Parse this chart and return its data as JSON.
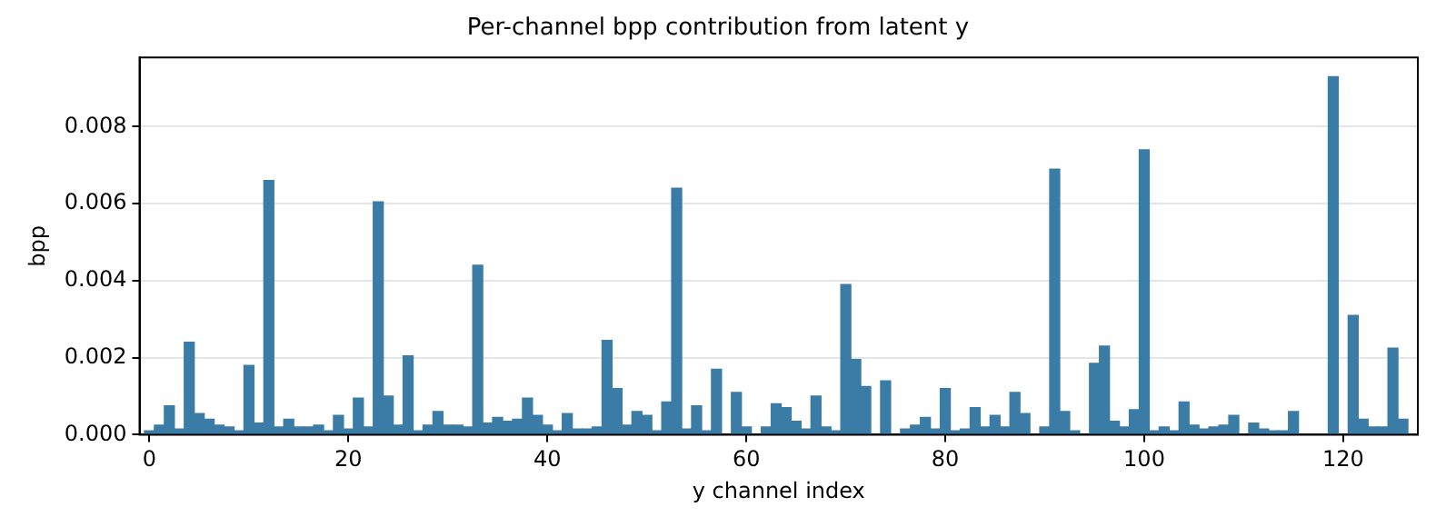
{
  "chart_data": {
    "type": "bar",
    "title": "Per-channel bpp contribution from latent y",
    "xlabel": "y channel index",
    "ylabel": "bpp",
    "x": [
      0,
      1,
      2,
      3,
      4,
      5,
      6,
      7,
      8,
      9,
      10,
      11,
      12,
      13,
      14,
      15,
      16,
      17,
      18,
      19,
      20,
      21,
      22,
      23,
      24,
      25,
      26,
      27,
      28,
      29,
      30,
      31,
      32,
      33,
      34,
      35,
      36,
      37,
      38,
      39,
      40,
      41,
      42,
      43,
      44,
      45,
      46,
      47,
      48,
      49,
      50,
      51,
      52,
      53,
      54,
      55,
      56,
      57,
      58,
      59,
      60,
      61,
      62,
      63,
      64,
      65,
      66,
      67,
      68,
      69,
      70,
      71,
      72,
      73,
      74,
      75,
      76,
      77,
      78,
      79,
      80,
      81,
      82,
      83,
      84,
      85,
      86,
      87,
      88,
      89,
      90,
      91,
      92,
      93,
      94,
      95,
      96,
      97,
      98,
      99,
      100,
      101,
      102,
      103,
      104,
      105,
      106,
      107,
      108,
      109,
      110,
      111,
      112,
      113,
      114,
      115,
      116,
      117,
      118,
      119,
      120,
      121,
      122,
      123,
      124,
      125,
      126,
      127
    ],
    "values": [
      0.0001,
      0.00025,
      0.00075,
      0.00015,
      0.0024,
      0.00055,
      0.0004,
      0.00025,
      0.0002,
      0.0001,
      0.0018,
      0.0003,
      0.0066,
      0.0002,
      0.0004,
      0.0002,
      0.0002,
      0.00025,
      0.0001,
      0.0005,
      0.00015,
      0.00095,
      0.0002,
      0.00605,
      0.001,
      0.00025,
      0.00205,
      0.0001,
      0.00025,
      0.0006,
      0.00025,
      0.00025,
      0.0002,
      0.0044,
      0.0003,
      0.00045,
      0.00035,
      0.0004,
      0.00095,
      0.0005,
      0.00025,
      0.0001,
      0.00055,
      0.00015,
      0.00015,
      0.0002,
      0.00245,
      0.0012,
      0.00025,
      0.0006,
      0.0005,
      0.0001,
      0.00085,
      0.0064,
      0.00015,
      0.00075,
      0.0001,
      0.0017,
      0,
      0.0011,
      0.0002,
      0,
      0.0002,
      0.0008,
      0.0007,
      0.00035,
      0.00015,
      0.001,
      0.0002,
      0.0001,
      0.0039,
      0.00195,
      0.00125,
      0,
      0.0014,
      0,
      0.00015,
      0.00025,
      0.00045,
      0.00015,
      0.0012,
      0.0001,
      0.00015,
      0.0007,
      0.0002,
      0.0005,
      0.0002,
      0.0011,
      0.00055,
      0,
      0.0002,
      0.0069,
      0.0006,
      0.0001,
      0,
      0.00185,
      0.0023,
      0.00035,
      0.0002,
      0.00065,
      0.0074,
      0.0001,
      0.0002,
      0.0001,
      0.00085,
      0.00025,
      0.00015,
      0.0002,
      0.00025,
      0.0005,
      0,
      0.0003,
      0.00015,
      0.0001,
      0.0001,
      0.0006,
      0,
      0,
      0,
      0.0093,
      0,
      0.0031,
      0.0004,
      0.0002,
      0.0002,
      0.00225,
      0.0004,
      0
    ],
    "color": "#3a7ca5",
    "xlim": [
      -1,
      127.5
    ],
    "xticks": [
      0,
      20,
      40,
      60,
      80,
      100,
      120
    ],
    "ylim": [
      0,
      0.0098
    ],
    "yticks": [
      {
        "value": 0,
        "label": "0.000"
      },
      {
        "value": 0.002,
        "label": "0.002"
      },
      {
        "value": 0.004,
        "label": "0.004"
      },
      {
        "value": 0.006,
        "label": "0.006"
      },
      {
        "value": 0.008,
        "label": "0.008"
      }
    ],
    "grid": "y",
    "legend": false
  }
}
